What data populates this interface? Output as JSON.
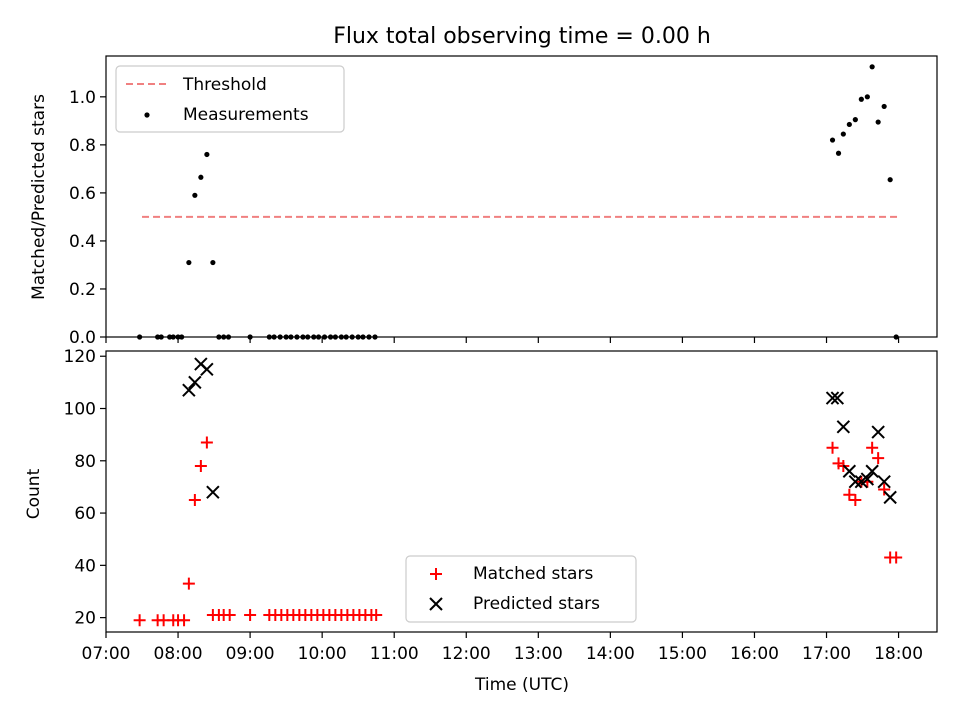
{
  "chart_data": {
    "type": "scatter",
    "title": "Flux total observing time = 0.00 h",
    "xlabel": "Time (UTC)",
    "x_format": "HH:MM",
    "xlim": [
      "07:00",
      "18:32"
    ],
    "x_ticks": [
      "07:00",
      "08:00",
      "09:00",
      "10:00",
      "11:00",
      "12:00",
      "13:00",
      "14:00",
      "15:00",
      "16:00",
      "17:00",
      "18:00"
    ],
    "panels": [
      {
        "name": "ratio",
        "ylabel": "Matched/Predicted stars",
        "ylim": [
          0,
          1.17
        ],
        "y_ticks": [
          "0.0",
          "0.2",
          "0.4",
          "0.6",
          "0.8",
          "1.0"
        ],
        "legend_position": "upper-left",
        "series": [
          {
            "name": "Threshold",
            "kind": "dashed-line",
            "color": "#f08080",
            "points": [
              [
                "07:30",
                0.5
              ],
              [
                "18:00",
                0.5
              ]
            ]
          },
          {
            "name": "Measurements",
            "kind": "dot",
            "color": "#000000",
            "points": [
              [
                "07:28",
                0
              ],
              [
                "07:43",
                0
              ],
              [
                "07:46",
                0
              ],
              [
                "07:53",
                0
              ],
              [
                "07:56",
                0
              ],
              [
                "08:00",
                0
              ],
              [
                "08:03",
                0
              ],
              [
                "08:09",
                0.31
              ],
              [
                "08:14",
                0.59
              ],
              [
                "08:19",
                0.665
              ],
              [
                "08:24",
                0.76
              ],
              [
                "08:29",
                0.31
              ],
              [
                "08:34",
                0
              ],
              [
                "08:38",
                0
              ],
              [
                "08:42",
                0
              ],
              [
                "09:00",
                0
              ],
              [
                "09:16",
                0
              ],
              [
                "09:20",
                0
              ],
              [
                "09:25",
                0
              ],
              [
                "09:30",
                0
              ],
              [
                "09:34",
                0
              ],
              [
                "09:39",
                0
              ],
              [
                "09:44",
                0
              ],
              [
                "09:48",
                0
              ],
              [
                "09:53",
                0
              ],
              [
                "09:57",
                0
              ],
              [
                "10:02",
                0
              ],
              [
                "10:07",
                0
              ],
              [
                "10:11",
                0
              ],
              [
                "10:16",
                0
              ],
              [
                "10:20",
                0
              ],
              [
                "10:25",
                0
              ],
              [
                "10:30",
                0
              ],
              [
                "10:34",
                0
              ],
              [
                "10:39",
                0
              ],
              [
                "10:44",
                0
              ],
              [
                "17:05",
                0.82
              ],
              [
                "17:10",
                0.765
              ],
              [
                "17:14",
                0.845
              ],
              [
                "17:19",
                0.885
              ],
              [
                "17:24",
                0.905
              ],
              [
                "17:29",
                0.99
              ],
              [
                "17:34",
                1.0
              ],
              [
                "17:38",
                1.125
              ],
              [
                "17:43",
                0.895
              ],
              [
                "17:48",
                0.96
              ],
              [
                "17:53",
                0.655
              ],
              [
                "17:58",
                0
              ]
            ]
          }
        ]
      },
      {
        "name": "counts",
        "ylabel": "Count",
        "ylim": [
          14.5,
          122
        ],
        "y_ticks": [
          "20",
          "40",
          "60",
          "80",
          "100",
          "120"
        ],
        "legend_position": "lower-center",
        "series": [
          {
            "name": "Matched stars",
            "kind": "plus",
            "color": "#ff0000",
            "points": [
              [
                "07:28",
                19
              ],
              [
                "07:43",
                19
              ],
              [
                "07:48",
                19
              ],
              [
                "07:56",
                19
              ],
              [
                "08:00",
                19
              ],
              [
                "08:05",
                19
              ],
              [
                "08:09",
                33
              ],
              [
                "08:14",
                65
              ],
              [
                "08:19",
                78
              ],
              [
                "08:24",
                87
              ],
              [
                "08:29",
                21
              ],
              [
                "08:34",
                21
              ],
              [
                "08:38",
                21
              ],
              [
                "08:43",
                21
              ],
              [
                "09:00",
                21
              ],
              [
                "09:16",
                21
              ],
              [
                "09:21",
                21
              ],
              [
                "09:26",
                21
              ],
              [
                "09:31",
                21
              ],
              [
                "09:36",
                21
              ],
              [
                "09:41",
                21
              ],
              [
                "09:46",
                21
              ],
              [
                "09:51",
                21
              ],
              [
                "09:56",
                21
              ],
              [
                "10:01",
                21
              ],
              [
                "10:06",
                21
              ],
              [
                "10:11",
                21
              ],
              [
                "10:16",
                21
              ],
              [
                "10:21",
                21
              ],
              [
                "10:26",
                21
              ],
              [
                "10:31",
                21
              ],
              [
                "10:36",
                21
              ],
              [
                "10:41",
                21
              ],
              [
                "10:45",
                21
              ],
              [
                "17:05",
                85
              ],
              [
                "17:10",
                79
              ],
              [
                "17:14",
                78
              ],
              [
                "17:19",
                67
              ],
              [
                "17:24",
                65
              ],
              [
                "17:29",
                72
              ],
              [
                "17:34",
                72
              ],
              [
                "17:38",
                85
              ],
              [
                "17:43",
                81
              ],
              [
                "17:48",
                69
              ],
              [
                "17:53",
                43
              ],
              [
                "17:58",
                43
              ]
            ]
          },
          {
            "name": "Predicted stars",
            "kind": "x",
            "color": "#000000",
            "points": [
              [
                "08:09",
                107
              ],
              [
                "08:14",
                110
              ],
              [
                "08:19",
                117
              ],
              [
                "08:24",
                115
              ],
              [
                "08:29",
                68
              ],
              [
                "17:05",
                104
              ],
              [
                "17:09",
                104
              ],
              [
                "17:14",
                93
              ],
              [
                "17:19",
                76
              ],
              [
                "17:24",
                72
              ],
              [
                "17:29",
                72
              ],
              [
                "17:34",
                73
              ],
              [
                "17:38",
                76
              ],
              [
                "17:43",
                91
              ],
              [
                "17:48",
                72
              ],
              [
                "17:53",
                66
              ]
            ]
          }
        ]
      }
    ]
  }
}
